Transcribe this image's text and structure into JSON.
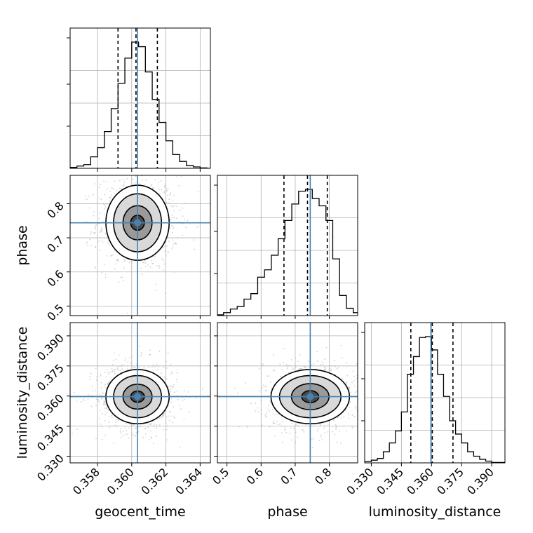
{
  "chart_data": {
    "type": "corner",
    "parameters": [
      "geocent_time",
      "phase",
      "luminosity_distance"
    ],
    "axis_labels": {
      "x": [
        "geocent_time",
        "phase",
        "luminosity_distance"
      ],
      "y": [
        "phase",
        "luminosity_distance"
      ]
    },
    "truths": {
      "geocent_time": 0.36034,
      "phase": 0.744,
      "luminosity_distance": 0.3597
    },
    "ranges": {
      "geocent_time": [
        0.3564,
        0.3646
      ],
      "phase": [
        0.472,
        0.883
      ],
      "luminosity_distance": [
        0.3267,
        0.3966
      ]
    },
    "ticks": {
      "geocent_time": [
        {
          "v": 0.358,
          "t": "0.358"
        },
        {
          "v": 0.36,
          "t": "0.360"
        },
        {
          "v": 0.362,
          "t": "0.362"
        },
        {
          "v": 0.364,
          "t": "0.364"
        }
      ],
      "phase_x": [
        {
          "v": 0.5,
          "t": "0.5"
        },
        {
          "v": 0.6,
          "t": "0.6"
        },
        {
          "v": 0.7,
          "t": "0.7"
        },
        {
          "v": 0.8,
          "t": "0.8"
        }
      ],
      "phase_y": [
        {
          "v": 0.5,
          "t": "0.5"
        },
        {
          "v": 0.6,
          "t": "0.6"
        },
        {
          "v": 0.7,
          "t": "0.7"
        },
        {
          "v": 0.8,
          "t": "0.8"
        }
      ],
      "luminosity_distance": [
        {
          "v": 0.33,
          "t": "0.330"
        },
        {
          "v": 0.345,
          "t": "0.345"
        },
        {
          "v": 0.36,
          "t": "0.360"
        },
        {
          "v": 0.375,
          "t": "0.375"
        },
        {
          "v": 0.39,
          "t": "0.390"
        }
      ]
    },
    "histograms": {
      "geocent_time": {
        "quantiles": [
          0.3592,
          0.36025,
          0.3615
        ],
        "bin_edges": [
          0.3564,
          0.3568,
          0.3572,
          0.3576,
          0.358,
          0.3584,
          0.3588,
          0.3592,
          0.3596,
          0.36,
          0.3604,
          0.3608,
          0.3612,
          0.3616,
          0.362,
          0.3624,
          0.3628,
          0.3632,
          0.3636,
          0.364,
          0.3644,
          0.3646
        ],
        "counts": [
          2,
          5,
          8,
          25,
          45,
          80,
          130,
          185,
          240,
          275,
          265,
          210,
          150,
          100,
          60,
          30,
          15,
          6,
          3,
          1,
          0
        ]
      },
      "phase": {
        "quantiles": [
          0.667,
          0.736,
          0.794
        ],
        "bin_edges": [
          0.472,
          0.49,
          0.51,
          0.53,
          0.55,
          0.57,
          0.59,
          0.61,
          0.63,
          0.65,
          0.67,
          0.69,
          0.71,
          0.73,
          0.75,
          0.77,
          0.79,
          0.81,
          0.83,
          0.85,
          0.87,
          0.883
        ],
        "counts": [
          2,
          8,
          18,
          25,
          45,
          60,
          105,
          125,
          165,
          210,
          260,
          305,
          340,
          345,
          320,
          300,
          260,
          155,
          55,
          20,
          8
        ]
      },
      "luminosity_distance": {
        "quantiles": [
          0.3497,
          0.3604,
          0.3707
        ],
        "bin_edges": [
          0.3267,
          0.33,
          0.333,
          0.336,
          0.339,
          0.342,
          0.345,
          0.348,
          0.351,
          0.354,
          0.357,
          0.36,
          0.363,
          0.366,
          0.369,
          0.372,
          0.375,
          0.378,
          0.381,
          0.384,
          0.387,
          0.39,
          0.3966
        ],
        "counts": [
          3,
          6,
          10,
          25,
          45,
          72,
          115,
          200,
          240,
          283,
          285,
          255,
          200,
          150,
          95,
          65,
          45,
          25,
          15,
          8,
          4,
          1
        ]
      }
    },
    "contours_2d": {
      "phase_vs_geocent_time": {
        "center": [
          0.36034,
          0.744
        ],
        "levels": [
          {
            "rx": 0.0004,
            "ry": 0.022,
            "rot": 0
          },
          {
            "rx": 0.00085,
            "ry": 0.05,
            "rot": 0
          },
          {
            "rx": 0.0014,
            "ry": 0.085,
            "rot": 0
          },
          {
            "rx": 0.00185,
            "ry": 0.11,
            "rot": 0
          }
        ]
      },
      "luminosity_distance_vs_geocent_time": {
        "center": [
          0.36034,
          0.3597
        ],
        "levels": [
          {
            "rx": 0.0004,
            "ry": 0.0028,
            "rot": 0
          },
          {
            "rx": 0.00085,
            "ry": 0.0062,
            "rot": 0
          },
          {
            "rx": 0.0014,
            "ry": 0.0105,
            "rot": 0
          },
          {
            "rx": 0.00185,
            "ry": 0.0135,
            "rot": 0
          }
        ]
      },
      "luminosity_distance_vs_phase": {
        "center": [
          0.744,
          0.3597
        ],
        "levels": [
          {
            "rx": 0.025,
            "ry": 0.003,
            "rot": 0
          },
          {
            "rx": 0.055,
            "ry": 0.0065,
            "rot": 0
          },
          {
            "rx": 0.09,
            "ry": 0.0105,
            "rot": 0
          },
          {
            "rx": 0.115,
            "ry": 0.0135,
            "rot": 0
          }
        ]
      }
    },
    "colors": {
      "truth": "#4682b4",
      "contour": "#000000",
      "grid": "#b0b0b0",
      "scatter": "#bdbdbd"
    },
    "grid": true
  }
}
